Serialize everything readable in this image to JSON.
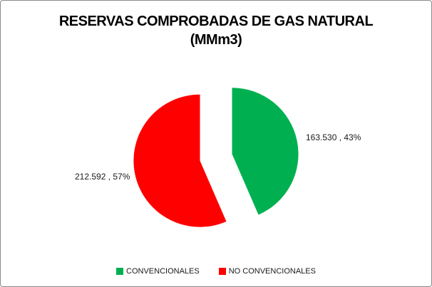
{
  "header": {
    "title_line1": "RESERVAS COMPROBADAS DE GAS NATURAL",
    "title_line2": "(MMm3)"
  },
  "chart_data": {
    "type": "pie",
    "title": "RESERVAS COMPROBADAS DE GAS NATURAL (MMm3)",
    "labels": [
      "CONVENCIONALES",
      "NO CONVENCIONALES"
    ],
    "values": [
      163530,
      212592
    ],
    "percents": [
      43,
      57
    ],
    "colors": [
      "#00B050",
      "#FF0000"
    ],
    "data_labels": [
      "163.530 , 43%",
      "212.592 , 57%"
    ],
    "start_angle_deg": 0,
    "direction": "clockwise",
    "exploded": true,
    "legend_position": "bottom",
    "background": "#FFFFFF",
    "border_color": "#898989"
  }
}
